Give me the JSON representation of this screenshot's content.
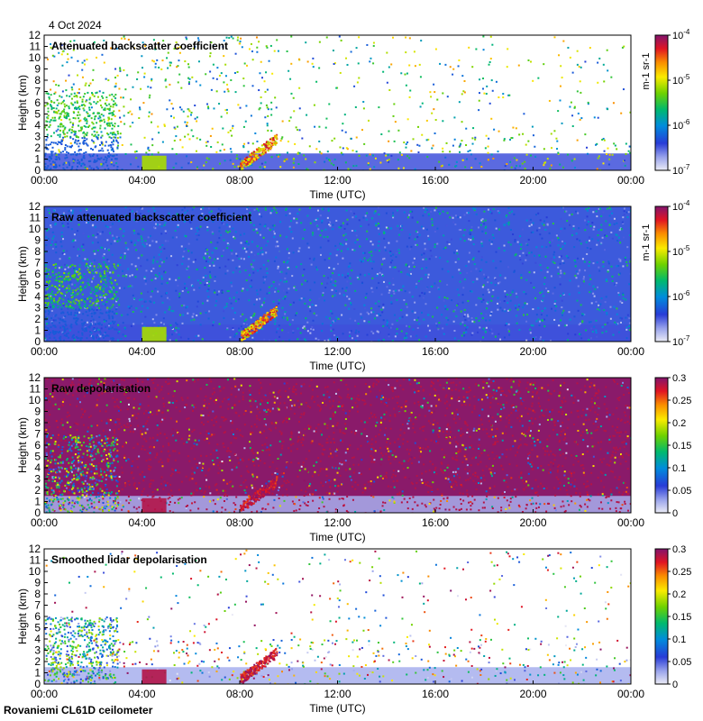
{
  "header": {
    "date": "4 Oct 2024"
  },
  "footer": {
    "station": "Rovaniemi CL61D ceilometer"
  },
  "chart_data": [
    {
      "type": "heatmap",
      "title": "Attenuated backscatter coefficient",
      "xlabel": "Time (UTC)",
      "ylabel": "Height (km)",
      "x_ticks": [
        "00:00",
        "04:00",
        "08:00",
        "12:00",
        "16:00",
        "20:00",
        "00:00"
      ],
      "xlim_hours": [
        0,
        24
      ],
      "y_ticks": [
        0,
        1,
        2,
        3,
        4,
        5,
        6,
        7,
        8,
        9,
        10,
        11,
        12
      ],
      "ylim": [
        0,
        12
      ],
      "colorbar": {
        "scale": "log",
        "min": 1e-07,
        "max": 0.0001,
        "tick_labels": [
          "10-7",
          "10-6",
          "10-5",
          "10-4"
        ],
        "label": "m-1 sr-1"
      },
      "colors": {
        "background": "#ffffff"
      }
    },
    {
      "type": "heatmap",
      "title": "Raw attenuated backscatter coefficient",
      "xlabel": "Time (UTC)",
      "ylabel": "Height (km)",
      "x_ticks": [
        "00:00",
        "04:00",
        "08:00",
        "12:00",
        "16:00",
        "20:00",
        "00:00"
      ],
      "xlim_hours": [
        0,
        24
      ],
      "y_ticks": [
        0,
        1,
        2,
        3,
        4,
        5,
        6,
        7,
        8,
        9,
        10,
        11,
        12
      ],
      "ylim": [
        0,
        12
      ],
      "colorbar": {
        "scale": "log",
        "min": 1e-07,
        "max": 0.0001,
        "tick_labels": [
          "10-7",
          "10-6",
          "10-5",
          "10-4"
        ],
        "label": "m-1 sr-1"
      },
      "colors": {
        "background": "#3c5adc"
      }
    },
    {
      "type": "heatmap",
      "title": "Raw depolarisation",
      "xlabel": "Time (UTC)",
      "ylabel": "Height (km)",
      "x_ticks": [
        "00:00",
        "04:00",
        "08:00",
        "12:00",
        "16:00",
        "20:00",
        "00:00"
      ],
      "xlim_hours": [
        0,
        24
      ],
      "y_ticks": [
        0,
        1,
        2,
        3,
        4,
        5,
        6,
        7,
        8,
        9,
        10,
        11,
        12
      ],
      "ylim": [
        0,
        12
      ],
      "colorbar": {
        "scale": "linear",
        "min": 0,
        "max": 0.3,
        "tick_labels": [
          "0",
          "0.05",
          "0.1",
          "0.15",
          "0.2",
          "0.25",
          "0.3"
        ],
        "label": ""
      },
      "colors": {
        "background": "#8a1a6a"
      }
    },
    {
      "type": "heatmap",
      "title": "Smoothed lidar depolarisation",
      "xlabel": "Time (UTC)",
      "ylabel": "Height (km)",
      "x_ticks": [
        "00:00",
        "04:00",
        "08:00",
        "12:00",
        "16:00",
        "20:00",
        "00:00"
      ],
      "xlim_hours": [
        0,
        24
      ],
      "y_ticks": [
        0,
        1,
        2,
        3,
        4,
        5,
        6,
        7,
        8,
        9,
        10,
        11,
        12
      ],
      "ylim": [
        0,
        12
      ],
      "colorbar": {
        "scale": "linear",
        "min": 0,
        "max": 0.3,
        "tick_labels": [
          "0",
          "0.05",
          "0.1",
          "0.15",
          "0.2",
          "0.25",
          "0.3"
        ],
        "label": ""
      },
      "colors": {
        "background": "#ffffff"
      }
    }
  ]
}
